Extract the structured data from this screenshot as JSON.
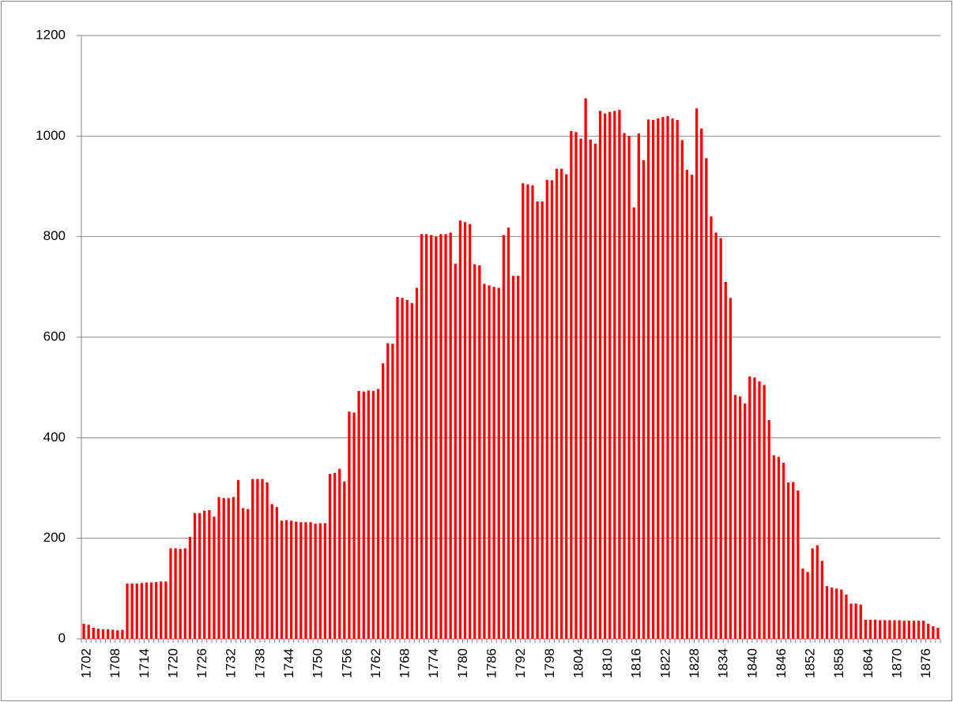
{
  "chart_data": {
    "type": "bar",
    "categories": [
      "1702",
      null,
      null,
      null,
      null,
      null,
      "1708",
      null,
      null,
      null,
      null,
      null,
      "1714",
      null,
      null,
      null,
      null,
      null,
      "1720",
      null,
      null,
      null,
      null,
      null,
      "1726",
      null,
      null,
      null,
      null,
      null,
      "1732",
      null,
      null,
      null,
      null,
      null,
      "1738",
      null,
      null,
      null,
      null,
      null,
      "1744",
      null,
      null,
      null,
      null,
      null,
      "1750",
      null,
      null,
      null,
      null,
      null,
      "1756",
      null,
      null,
      null,
      null,
      null,
      "1762",
      null,
      null,
      null,
      null,
      null,
      "1768",
      null,
      null,
      null,
      null,
      null,
      "1774",
      null,
      null,
      null,
      null,
      null,
      "1780",
      null,
      null,
      null,
      null,
      null,
      "1786",
      null,
      null,
      null,
      null,
      null,
      "1792",
      null,
      null,
      null,
      null,
      null,
      "1798",
      null,
      null,
      null,
      null,
      null,
      "1804",
      null,
      null,
      null,
      null,
      null,
      "1810",
      null,
      null,
      null,
      null,
      null,
      "1816",
      null,
      null,
      null,
      null,
      null,
      "1822",
      null,
      null,
      null,
      null,
      null,
      "1828",
      null,
      null,
      null,
      null,
      null,
      "1834",
      null,
      null,
      null,
      null,
      null,
      "1840",
      null,
      null,
      null,
      null,
      null,
      "1846",
      null,
      null,
      null,
      null,
      null,
      "1852",
      null,
      null,
      null,
      null,
      null,
      "1858",
      null,
      null,
      null,
      null,
      null,
      "1864",
      null,
      null,
      null,
      null,
      null,
      "1870",
      null,
      null,
      null,
      null,
      null,
      "1876",
      null,
      null,
      null
    ],
    "values": [
      30,
      28,
      22,
      20,
      19,
      19,
      18,
      17,
      18,
      110,
      110,
      110,
      111,
      112,
      112,
      113,
      114,
      114,
      180,
      180,
      179,
      180,
      203,
      250,
      250,
      255,
      256,
      243,
      282,
      280,
      280,
      282,
      316,
      260,
      258,
      318,
      318,
      318,
      311,
      268,
      262,
      235,
      236,
      235,
      233,
      232,
      232,
      232,
      229,
      230,
      230,
      328,
      330,
      338,
      313,
      452,
      450,
      493,
      492,
      494,
      493,
      497,
      548,
      588,
      587,
      680,
      678,
      674,
      668,
      698,
      805,
      805,
      803,
      800,
      805,
      805,
      808,
      746,
      832,
      829,
      825,
      745,
      743,
      706,
      703,
      700,
      698,
      803,
      818,
      722,
      722,
      906,
      904,
      902,
      870,
      870,
      913,
      912,
      935,
      935,
      924,
      1010,
      1008,
      995,
      1075,
      993,
      985,
      1050,
      1045,
      1048,
      1050,
      1052,
      1006,
      1000,
      858,
      1005,
      952,
      1033,
      1032,
      1035,
      1038,
      1040,
      1035,
      1032,
      992,
      933,
      923,
      1055,
      1015,
      956,
      840,
      808,
      797,
      710,
      678,
      485,
      482,
      468,
      522,
      520,
      512,
      505,
      435,
      365,
      362,
      350,
      311,
      312,
      295,
      140,
      133,
      180,
      186,
      155,
      105,
      102,
      100,
      98,
      88,
      70,
      70,
      68,
      38,
      38,
      38,
      37,
      37,
      37,
      37,
      37,
      36,
      36,
      36,
      36,
      36,
      30,
      25,
      22
    ],
    "color": "#ff0000",
    "ylim": [
      0,
      1200
    ],
    "yticks": [
      0,
      200,
      400,
      600,
      800,
      1000,
      1200
    ],
    "grid": true
  }
}
